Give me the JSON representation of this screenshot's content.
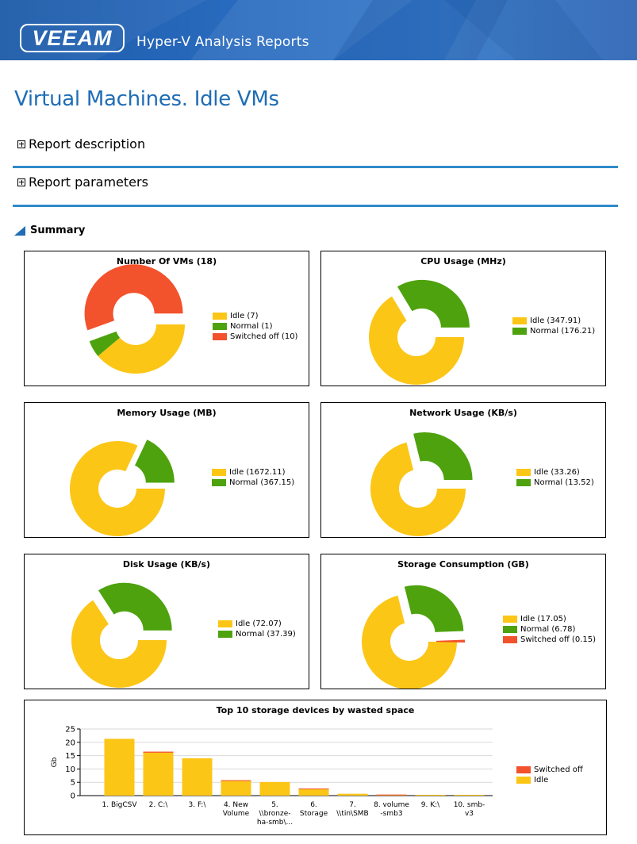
{
  "header": {
    "logo_text": "VEEAM",
    "app_title": "Hyper-V Analysis Reports"
  },
  "page": {
    "title": "Virtual Machines. Idle VMs",
    "sections": {
      "description": "Report description",
      "parameters": "Report parameters"
    },
    "summary_label": "Summary"
  },
  "colors": {
    "idle": "#fcc617",
    "normal": "#4da20d",
    "switched_off": "#f2522c",
    "accent": "#1f6db5",
    "rule": "#2f8bc9"
  },
  "chart_data": [
    {
      "type": "pie",
      "title": "Number Of VMs (18)",
      "series": [
        {
          "name": "Idle (7)",
          "value": 7,
          "color": "#fcc617"
        },
        {
          "name": "Normal (1)",
          "value": 1,
          "color": "#4da20d"
        },
        {
          "name": "Switched off (10)",
          "value": 10,
          "color": "#f2522c"
        }
      ]
    },
    {
      "type": "pie",
      "title": "CPU Usage (MHz)",
      "series": [
        {
          "name": "Idle (347.91)",
          "value": 347.91,
          "color": "#fcc617"
        },
        {
          "name": "Normal (176.21)",
          "value": 176.21,
          "color": "#4da20d"
        }
      ]
    },
    {
      "type": "pie",
      "title": "Memory Usage (MB)",
      "series": [
        {
          "name": "Idle (1672.11)",
          "value": 1672.11,
          "color": "#fcc617"
        },
        {
          "name": "Normal (367.15)",
          "value": 367.15,
          "color": "#4da20d"
        }
      ]
    },
    {
      "type": "pie",
      "title": "Network Usage (KB/s)",
      "series": [
        {
          "name": "Idle (33.26)",
          "value": 33.26,
          "color": "#fcc617"
        },
        {
          "name": "Normal (13.52)",
          "value": 13.52,
          "color": "#4da20d"
        }
      ]
    },
    {
      "type": "pie",
      "title": "Disk Usage (KB/s)",
      "series": [
        {
          "name": "Idle (72.07)",
          "value": 72.07,
          "color": "#fcc617"
        },
        {
          "name": "Normal (37.39)",
          "value": 37.39,
          "color": "#4da20d"
        }
      ]
    },
    {
      "type": "pie",
      "title": "Storage Consumption (GB)",
      "series": [
        {
          "name": "Idle (17.05)",
          "value": 17.05,
          "color": "#fcc617"
        },
        {
          "name": "Normal (6.78)",
          "value": 6.78,
          "color": "#4da20d"
        },
        {
          "name": "Switched off (0.15)",
          "value": 0.15,
          "color": "#f2522c"
        }
      ]
    },
    {
      "type": "bar",
      "stacked": true,
      "title": "Top 10 storage devices by wasted space",
      "ylabel": "Gb",
      "ylim": [
        0,
        25
      ],
      "yticks": [
        0,
        5,
        10,
        15,
        20,
        25
      ],
      "grid": true,
      "legend": "right",
      "categories": [
        "1. BigCSV",
        "2. C:\\",
        "3. F:\\",
        "4. New Volume",
        "5. \\\\bronze-ha-smb\\...",
        "6. Storage",
        "7. \\\\tin\\SMB",
        "8. volume -smb3",
        "9. K:\\",
        "10. smb-v3"
      ],
      "category_lines": [
        [
          "1. BigCSV"
        ],
        [
          "2. C:\\"
        ],
        [
          "3. F:\\"
        ],
        [
          "4. New",
          "Volume"
        ],
        [
          "5.",
          "\\\\bronze-",
          "ha-smb\\..."
        ],
        [
          "6.",
          "Storage"
        ],
        [
          "7.",
          "\\\\tin\\SMB"
        ],
        [
          "8. volume",
          "-smb3"
        ],
        [
          "9. K:\\"
        ],
        [
          "10. smb-",
          "v3"
        ]
      ],
      "series": [
        {
          "name": "Switched off",
          "color": "#f2522c",
          "values": [
            0,
            0.4,
            0,
            0.2,
            0,
            0.15,
            0,
            0.1,
            0,
            0
          ]
        },
        {
          "name": "Idle",
          "color": "#fcc617",
          "values": [
            21.3,
            16.1,
            14.0,
            5.6,
            5.1,
            2.5,
            0.7,
            0.3,
            0.3,
            0.3
          ]
        }
      ]
    }
  ]
}
